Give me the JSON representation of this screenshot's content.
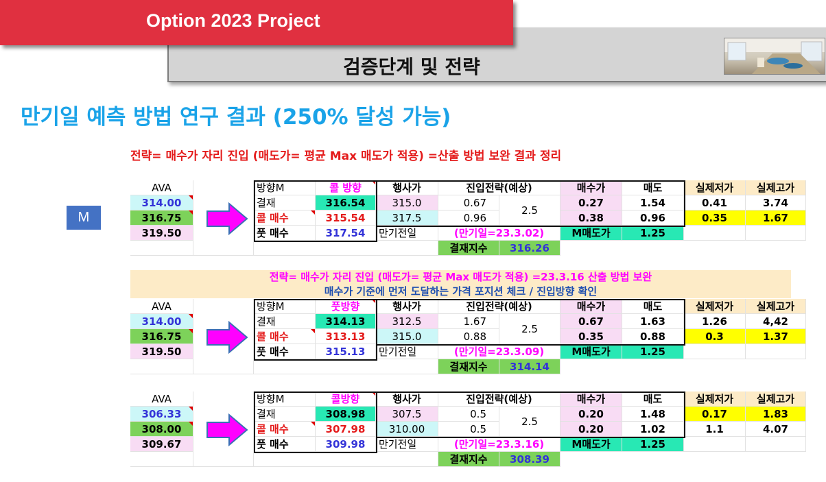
{
  "header": {
    "project_title": "Option 2023 Project",
    "section_title": "검증단계 및 전략"
  },
  "main_title": "만기일 예측 방법 연구 결과 (250% 달성 가능)",
  "subtitle": "전략= 매수가 자리 진입 (매도가= 평균 Max 매도가 적용) =산출 방법 보완 결과 정리",
  "m_label": "M",
  "note1": "전략= 매수가 자리 진입 (매도가= 평균 Max 매도가 적용) =23.3.16 산출 방법 보완",
  "note2": "매수가 기준에 먼저 도달하는 가격 포지션 체크 / 진입방향 확인",
  "colors": {
    "pink": "#f8dcf4",
    "cyan": "#ccf7f8",
    "green": "#7dd25a",
    "teal": "#28e8b4",
    "yellow": "#ffff00",
    "red": "#e41b1b",
    "blue": "#3333d8",
    "magenta": "#ff00ff"
  },
  "tables": [
    {
      "ava": {
        "label": "AVA",
        "v1": "314.00",
        "v2": "316.75",
        "v3": "319.50"
      },
      "dir_header": "방향M",
      "dir_value_header": "콜 방향",
      "settle_label": "결재",
      "settle_value": "316.54",
      "call_label": "콜 매수",
      "call_value": "315.54",
      "put_label": "풋 매수",
      "put_value": "317.54",
      "h_strike": "행사가",
      "h_entry": "진입전략(예상)",
      "h_buy": "매수가",
      "h_sell": "매도",
      "h_low": "실제저가",
      "h_high": "실제고가",
      "row1": {
        "strike": "315.0",
        "entry": "0.67",
        "buy": "0.27",
        "sell": "1.54",
        "low": "0.41",
        "high": "3.74"
      },
      "row2": {
        "strike": "317.5",
        "entry": "0.96",
        "buy": "0.38",
        "sell": "0.96",
        "low": "0.35",
        "high": "1.67"
      },
      "ratio": "2.5",
      "day_before": "만기전일",
      "expiry": "(만기일=23.3.02)",
      "m_sell_label": "M매도가",
      "m_sell_value": "1.25",
      "settle_index_label": "결재지수",
      "settle_index_value": "316.26"
    },
    {
      "ava": {
        "label": "AVA",
        "v1": "314.00",
        "v2": "316.75",
        "v3": "319.50"
      },
      "dir_header": "방향M",
      "dir_value_header": "풋방향",
      "settle_label": "결재",
      "settle_value": "314.13",
      "call_label": "콜 매수",
      "call_value": "313.13",
      "put_label": "풋 매수",
      "put_value": "315.13",
      "h_strike": "행사가",
      "h_entry": "진입전략(예상)",
      "h_buy": "매수가",
      "h_sell": "매도",
      "h_low": "실제저가",
      "h_high": "실제고가",
      "row1": {
        "strike": "312.5",
        "entry": "1.67",
        "buy": "0.67",
        "sell": "1.63",
        "low": "1.26",
        "high": "4,42"
      },
      "row2": {
        "strike": "315.0",
        "entry": "0.88",
        "buy": "0.35",
        "sell": "0.88",
        "low": "0.3",
        "high": "1.37"
      },
      "ratio": "2.5",
      "day_before": "만기전일",
      "expiry": "(만기일=23.3.09)",
      "m_sell_label": "M매도가",
      "m_sell_value": "1.25",
      "settle_index_label": "결재지수",
      "settle_index_value": "314.14"
    },
    {
      "ava": {
        "label": "AVA",
        "v1": "306.33",
        "v2": "308.00",
        "v3": "309.67"
      },
      "dir_header": "방향M",
      "dir_value_header": "콜방향",
      "settle_label": "결재",
      "settle_value": "308.98",
      "call_label": "콜 매수",
      "call_value": "307.98",
      "put_label": "풋 매수",
      "put_value": "309.98",
      "h_strike": "행사가",
      "h_entry": "진입전략(예상)",
      "h_buy": "매수가",
      "h_sell": "매도",
      "h_low": "실제저가",
      "h_high": "실제고가",
      "row1": {
        "strike": "307.5",
        "entry": "0.5",
        "buy": "0.20",
        "sell": "1.48",
        "low": "0.17",
        "high": "1.83"
      },
      "row2": {
        "strike": "310.00",
        "entry": "0.5",
        "buy": "0.20",
        "sell": "1.02",
        "low": "1.1",
        "high": "4.07"
      },
      "ratio": "2.5",
      "day_before": "만기전일",
      "expiry": "(만기일=23.3.16)",
      "m_sell_label": "M매도가",
      "m_sell_value": "1.25",
      "settle_index_label": "결재지수",
      "settle_index_value": "308.39"
    }
  ]
}
